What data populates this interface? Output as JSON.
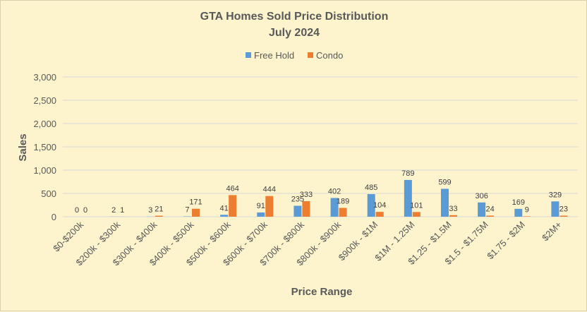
{
  "chart_data": {
    "type": "bar",
    "title": "GTA Homes Sold Price Distribution",
    "subtitle": "July 2024",
    "xlabel": "Price Range",
    "ylabel": "Sales",
    "ylim": [
      0,
      3000
    ],
    "yticks": [
      "0",
      "500",
      "1,000",
      "1,500",
      "2,000",
      "2,500",
      "3,000"
    ],
    "ytick_values": [
      0,
      500,
      1000,
      1500,
      2000,
      2500,
      3000
    ],
    "grid": true,
    "legend_position": "top",
    "categories": [
      "$0-$200k",
      "$200k - $300k",
      "$300k - $400k",
      "$400k - $500k",
      "$500k - $600k",
      "$600k - $700k",
      "$700k - $800k",
      "$800k - $900k",
      "$900k - $1M",
      "$1M - 1.25M",
      "$1.25 - $1.5M",
      "$1.5 - $1.75M",
      "$1.75 - $2M",
      "$2M+"
    ],
    "series": [
      {
        "name": "Free Hold",
        "color": "#5b9bd5",
        "values": [
          0,
          2,
          3,
          7,
          41,
          91,
          235,
          402,
          485,
          789,
          599,
          306,
          169,
          329
        ]
      },
      {
        "name": "Condo",
        "color": "#ed7d31",
        "values": [
          0,
          1,
          21,
          171,
          464,
          444,
          333,
          189,
          104,
          101,
          33,
          24,
          9,
          23
        ]
      }
    ]
  }
}
